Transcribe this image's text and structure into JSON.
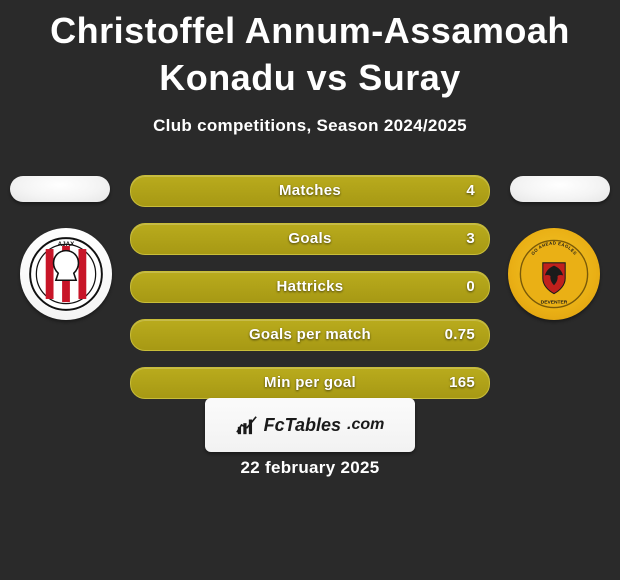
{
  "title": "Christoffel Annum-Assamoah Konadu vs Suray",
  "subtitle": "Club competitions, Season 2024/2025",
  "date": "22 february 2025",
  "brand": {
    "name": "FcTables",
    "suffix": ".com"
  },
  "pill_style": {
    "bg": "#ada11b",
    "border": "#c8bd39",
    "text": "#ffffff"
  },
  "teams": {
    "left": {
      "name": "Ajax"
    },
    "right": {
      "name": "Go Ahead Eagles"
    }
  },
  "stats": [
    {
      "label": "Matches",
      "value": "4"
    },
    {
      "label": "Goals",
      "value": "3"
    },
    {
      "label": "Hattricks",
      "value": "0"
    },
    {
      "label": "Goals per match",
      "value": "0.75"
    },
    {
      "label": "Min per goal",
      "value": "165"
    }
  ],
  "colors": {
    "page_bg": "#2a2a2a",
    "text": "#ffffff",
    "ph_bg": "#f3f3f3",
    "logo_box_bg": "#f7f7f7",
    "ajax_red": "#c81528",
    "gae_yellow": "#eab015",
    "gae_red": "#c0201c",
    "gae_black": "#1b1b1b"
  }
}
